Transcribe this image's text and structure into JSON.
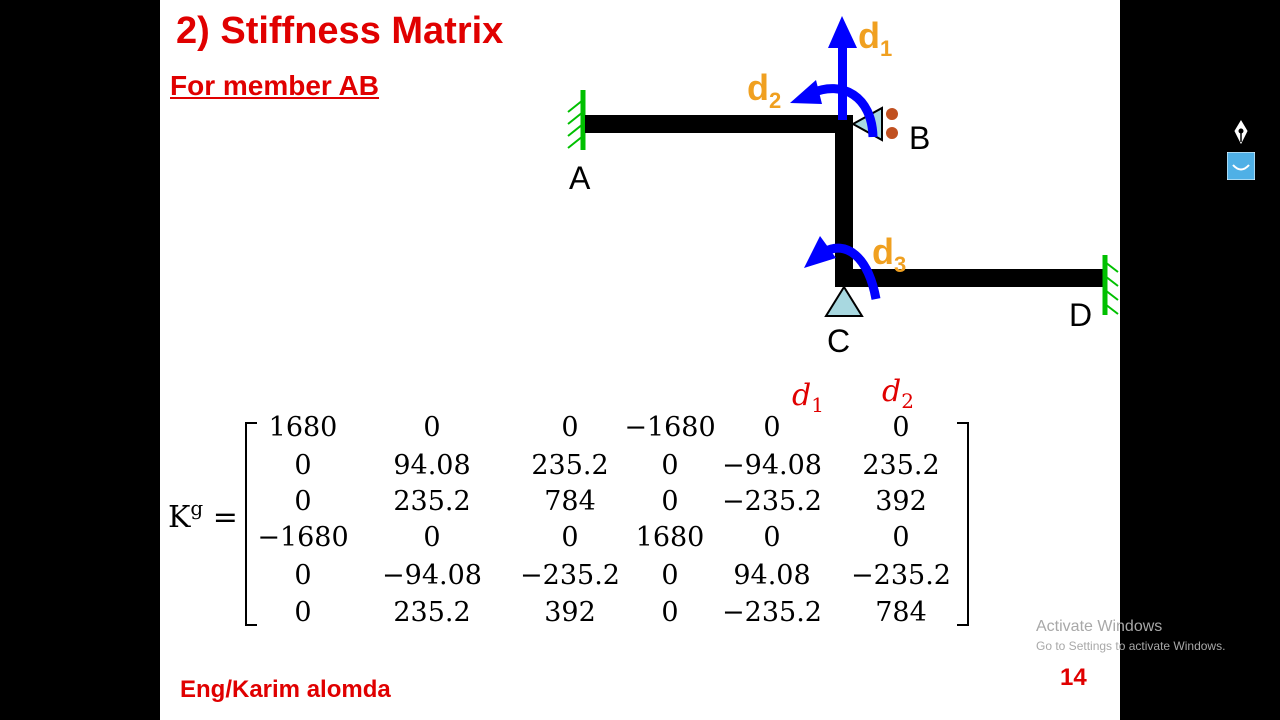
{
  "slide": {
    "title": "2) Stiffness Matrix",
    "subtitle": "For member AB",
    "author": "Eng/Karim alomda",
    "page_number": "14"
  },
  "diagram": {
    "nodes": [
      "A",
      "B",
      "C",
      "D"
    ],
    "dofs": [
      {
        "base": "d",
        "sub": "1"
      },
      {
        "base": "d",
        "sub": "2"
      },
      {
        "base": "d",
        "sub": "3"
      }
    ]
  },
  "matrix": {
    "symbol": "K",
    "superscript": "g",
    "equals": "=",
    "column_headers": [
      {
        "base": "d",
        "sub": "1"
      },
      {
        "base": "d",
        "sub": "2"
      }
    ],
    "rows": [
      [
        "1680",
        "0",
        "0",
        "−1680",
        "0",
        "0"
      ],
      [
        "0",
        "94.08",
        "235.2",
        "0",
        "−94.08",
        "235.2"
      ],
      [
        "0",
        "235.2",
        "784",
        "0",
        "−235.2",
        "392"
      ],
      [
        "−1680",
        "0",
        "0",
        "1680",
        "0",
        "0"
      ],
      [
        "0",
        "−94.08",
        "−235.2",
        "0",
        "94.08",
        "−235.2"
      ],
      [
        "0",
        "235.2",
        "392",
        "0",
        "−235.2",
        "784"
      ]
    ]
  },
  "watermark": {
    "line1": "Activate Windows",
    "line2": "Go to Settings to activate Windows."
  },
  "colors": {
    "title_red": "#e00000",
    "dof_orange": "#f0a020",
    "arrow_blue": "#0000ff",
    "support_green": "#00c000",
    "support_fill": "#a8d8e0"
  }
}
